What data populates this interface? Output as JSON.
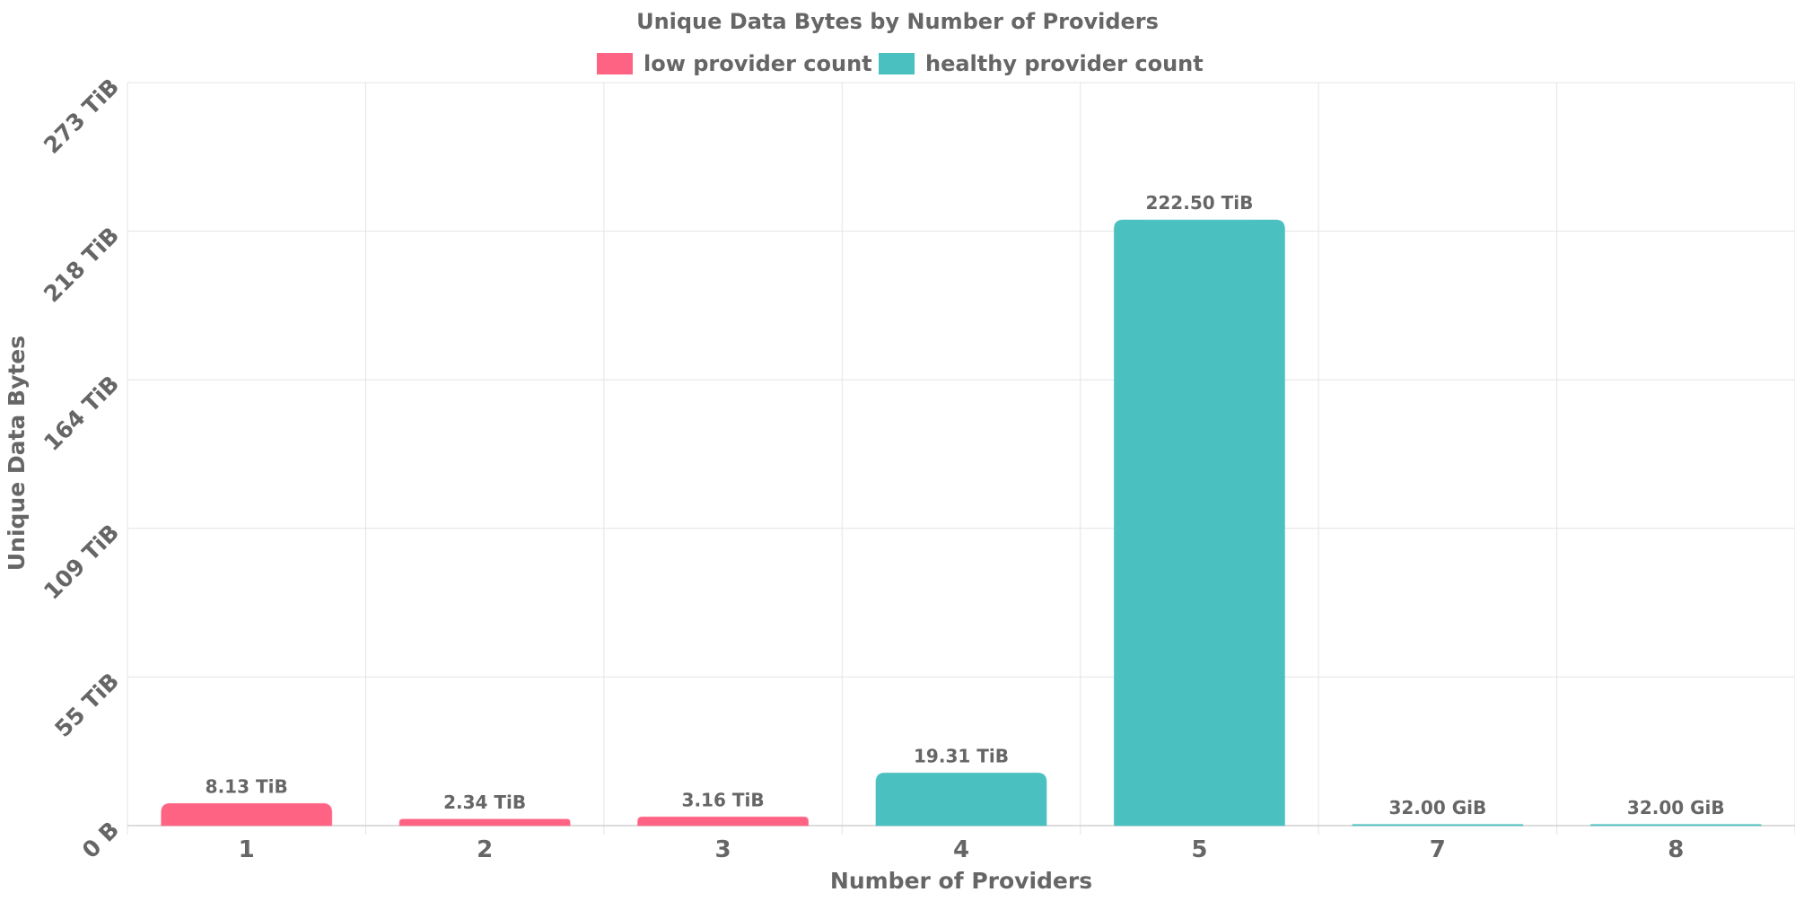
{
  "chart_data": {
    "type": "bar",
    "title": "Unique Data Bytes by Number of Providers",
    "xlabel": "Number of Providers",
    "ylabel": "Unique Data Bytes",
    "categories": [
      "1",
      "2",
      "3",
      "4",
      "5",
      "7",
      "8"
    ],
    "values_tib": [
      8.13,
      2.34,
      3.16,
      19.31,
      222.5,
      0.03125,
      0.03125
    ],
    "data_labels": [
      "8.13 TiB",
      "2.34 TiB",
      "3.16 TiB",
      "19.31 TiB",
      "222.50 TiB",
      "32.00 GiB",
      "32.00 GiB"
    ],
    "series_group": [
      "low provider count",
      "low provider count",
      "low provider count",
      "healthy provider count",
      "healthy provider count",
      "healthy provider count",
      "healthy provider count"
    ],
    "legend": [
      {
        "name": "low provider count",
        "color": "#ff6384"
      },
      {
        "name": "healthy provider count",
        "color": "#4bc0c0"
      }
    ],
    "ylim_tib": [
      0,
      273
    ],
    "y_ticks": [
      {
        "value": 0,
        "label": "0 B"
      },
      {
        "value": 54.6,
        "label": "55 TiB"
      },
      {
        "value": 109.2,
        "label": "109 TiB"
      },
      {
        "value": 163.8,
        "label": "164 TiB"
      },
      {
        "value": 218.4,
        "label": "218 TiB"
      },
      {
        "value": 273,
        "label": "273 TiB"
      }
    ],
    "grid": true,
    "legend_position": "top"
  }
}
